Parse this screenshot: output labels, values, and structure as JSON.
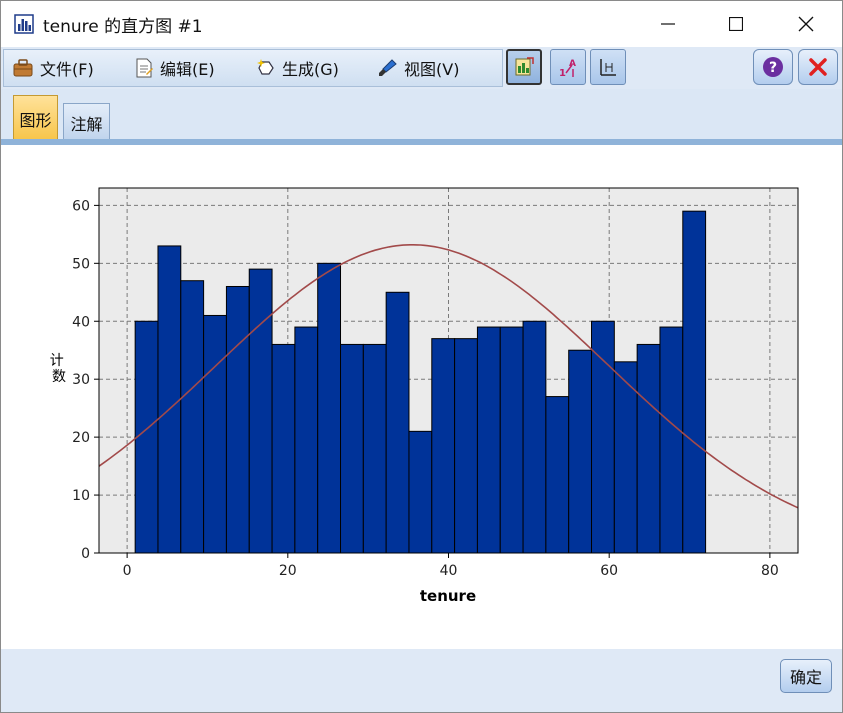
{
  "window": {
    "title": "tenure 的直方图 #1",
    "minimize_glyph": "—",
    "maximize_glyph": "☐",
    "close_glyph": "✕"
  },
  "menubar": {
    "items": [
      {
        "label": "文件(F)",
        "icon": "briefcase-icon"
      },
      {
        "label": "编辑(E)",
        "icon": "document-edit-icon"
      },
      {
        "label": "生成(G)",
        "icon": "generate-sparkle-icon"
      },
      {
        "label": "视图(V)",
        "icon": "brush-view-icon"
      }
    ]
  },
  "toolbar": {
    "buttons": [
      {
        "name": "chart-edit-button",
        "icon": "chart-edit-icon",
        "pressed": true
      },
      {
        "name": "sort-button",
        "icon": "sort-icon",
        "pressed": false
      },
      {
        "name": "axis-button",
        "icon": "axis-icon",
        "pressed": false
      }
    ],
    "help_icon": "help-icon",
    "close_icon": "close-red-icon"
  },
  "tabs": [
    {
      "label": "图形",
      "active": true
    },
    {
      "label": "注解",
      "active": false
    }
  ],
  "chart_data": {
    "type": "bar",
    "subtype": "histogram-with-normal-curve",
    "xlabel": "tenure",
    "ylabel": "计数",
    "xlim": [
      -3.5,
      83.5
    ],
    "ylim": [
      0,
      63
    ],
    "x_ticks": [
      0,
      20,
      40,
      60,
      80
    ],
    "y_ticks": [
      0,
      10,
      20,
      30,
      40,
      50,
      60
    ],
    "grid": true,
    "bar_start": 1,
    "bin_width": 2.84,
    "values": [
      40,
      53,
      47,
      41,
      46,
      49,
      36,
      39,
      50,
      36,
      36,
      45,
      21,
      37,
      37,
      39,
      39,
      40,
      27,
      35,
      40,
      33,
      36,
      39,
      59
    ],
    "curve": {
      "mean": 35.5,
      "std": 24.5,
      "peak": 53.2
    },
    "colors": {
      "bar": "#003399",
      "bar_edge": "#000000",
      "curve": "#a24a4a",
      "plot_bg": "#ebebeb",
      "grid": "#7a7a7a"
    }
  },
  "footer": {
    "ok_label": "确定"
  }
}
